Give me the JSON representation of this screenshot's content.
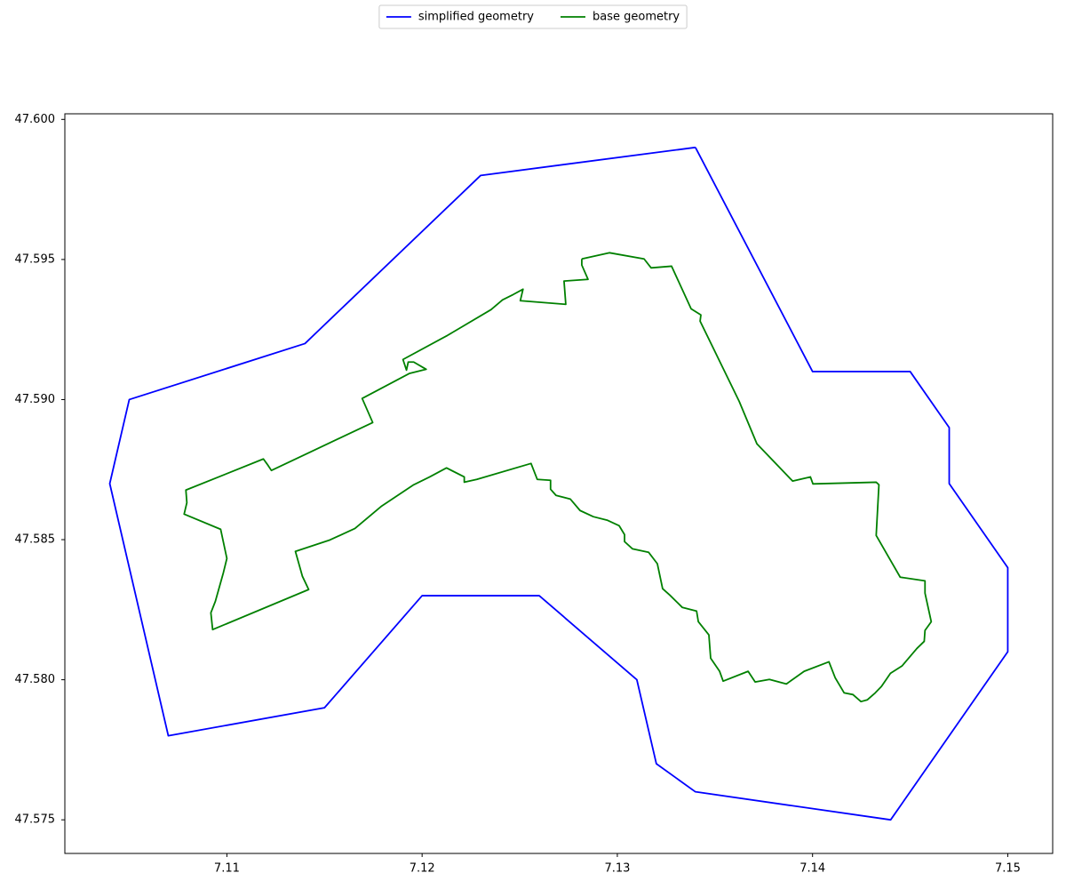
{
  "chart_data": {
    "type": "line",
    "series": [
      {
        "name": "simplified geometry",
        "color": "#0000ff",
        "x": [
          7.134,
          7.14,
          7.145,
          7.147,
          7.147,
          7.15,
          7.15,
          7.144,
          7.134,
          7.132,
          7.131,
          7.126,
          7.12,
          7.115,
          7.107,
          7.104,
          7.105,
          7.114,
          7.123,
          7.134
        ],
        "values": [
          47.599,
          47.591,
          47.591,
          47.589,
          47.587,
          47.584,
          47.581,
          47.575,
          47.576,
          47.577,
          47.58,
          47.583,
          47.583,
          47.579,
          47.578,
          47.587,
          47.59,
          47.592,
          47.598,
          47.599
        ]
      },
      {
        "name": "base geometry",
        "color": "#008000",
        "x": [
          7.12818,
          7.12959,
          7.13137,
          7.13173,
          7.13278,
          7.13378,
          7.13428,
          7.13424,
          7.13624,
          7.13715,
          7.13898,
          7.13989,
          7.14002,
          7.14326,
          7.1434,
          7.14326,
          7.14449,
          7.14576,
          7.14576,
          7.14608,
          7.14576,
          7.14572,
          7.14535,
          7.14458,
          7.14399,
          7.14353,
          7.14321,
          7.1428,
          7.14248,
          7.14207,
          7.14162,
          7.14116,
          7.14084,
          7.13957,
          7.13866,
          7.13779,
          7.13706,
          7.1367,
          7.13542,
          7.13524,
          7.13478,
          7.13469,
          7.13415,
          7.13406,
          7.13333,
          7.13269,
          7.13232,
          7.13205,
          7.1316,
          7.13078,
          7.13037,
          7.13037,
          7.13009,
          7.1295,
          7.12877,
          7.12809,
          7.12759,
          7.12686,
          7.12658,
          7.12658,
          7.1259,
          7.12558,
          7.1228,
          7.12216,
          7.12216,
          7.12125,
          7.12039,
          7.11957,
          7.11793,
          7.11656,
          7.11528,
          7.11351,
          7.11387,
          7.11419,
          7.10927,
          7.10918,
          7.10941,
          7.10982,
          7.11,
          7.10968,
          7.10781,
          7.10795,
          7.1079,
          7.11187,
          7.1121,
          7.11228,
          7.11747,
          7.11693,
          7.11934,
          7.12021,
          7.11957,
          7.11929,
          7.1192,
          7.11902,
          7.1213,
          7.12353,
          7.12412,
          7.12467,
          7.12517,
          7.12503,
          7.12736,
          7.12727,
          7.1285,
          7.12818,
          7.12818
        ],
        "values": [
          47.59502,
          47.59524,
          47.59502,
          47.5947,
          47.59476,
          47.59324,
          47.59302,
          47.5928,
          47.58994,
          47.58842,
          47.58709,
          47.58724,
          47.58699,
          47.58705,
          47.58696,
          47.58515,
          47.58366,
          47.58353,
          47.58309,
          47.58207,
          47.58176,
          47.58137,
          47.58112,
          47.58049,
          47.58023,
          47.57976,
          47.57953,
          47.57928,
          47.57922,
          47.57947,
          47.57953,
          47.58007,
          47.58064,
          47.5803,
          47.57985,
          47.58001,
          47.57992,
          47.5803,
          47.57995,
          47.5803,
          47.58077,
          47.5816,
          47.58207,
          47.58245,
          47.58258,
          47.58302,
          47.58325,
          47.58414,
          47.58455,
          47.58467,
          47.58493,
          47.58518,
          47.5855,
          47.58569,
          47.58582,
          47.58604,
          47.58645,
          47.58658,
          47.5868,
          47.58712,
          47.58715,
          47.58772,
          47.58715,
          47.58705,
          47.58724,
          47.58756,
          47.58724,
          47.58696,
          47.5862,
          47.5854,
          47.58499,
          47.58458,
          47.58369,
          47.58322,
          47.58179,
          47.58239,
          47.5828,
          47.58382,
          47.58433,
          47.58537,
          47.58591,
          47.58632,
          47.58677,
          47.58788,
          47.58766,
          47.58747,
          47.58918,
          47.59004,
          47.59093,
          47.59108,
          47.59134,
          47.59134,
          47.59105,
          47.59143,
          47.59229,
          47.59321,
          47.59356,
          47.59375,
          47.59394,
          47.59353,
          47.5934,
          47.59423,
          47.59429,
          47.5948,
          47.59502
        ]
      }
    ],
    "xlim": [
      7.1017,
      7.1523
    ],
    "ylim": [
      47.5738,
      47.6002
    ],
    "xticks": [
      7.11,
      7.12,
      7.13,
      7.14,
      7.15
    ],
    "yticks": [
      {
        "value": 47.575,
        "label": "47.575"
      },
      {
        "value": 47.58,
        "label": "47.580"
      },
      47.585,
      {
        "value": 47.59,
        "label": "47.590"
      },
      47.595,
      {
        "value": 47.6,
        "label": "47.600"
      }
    ],
    "legend": "upper center"
  }
}
